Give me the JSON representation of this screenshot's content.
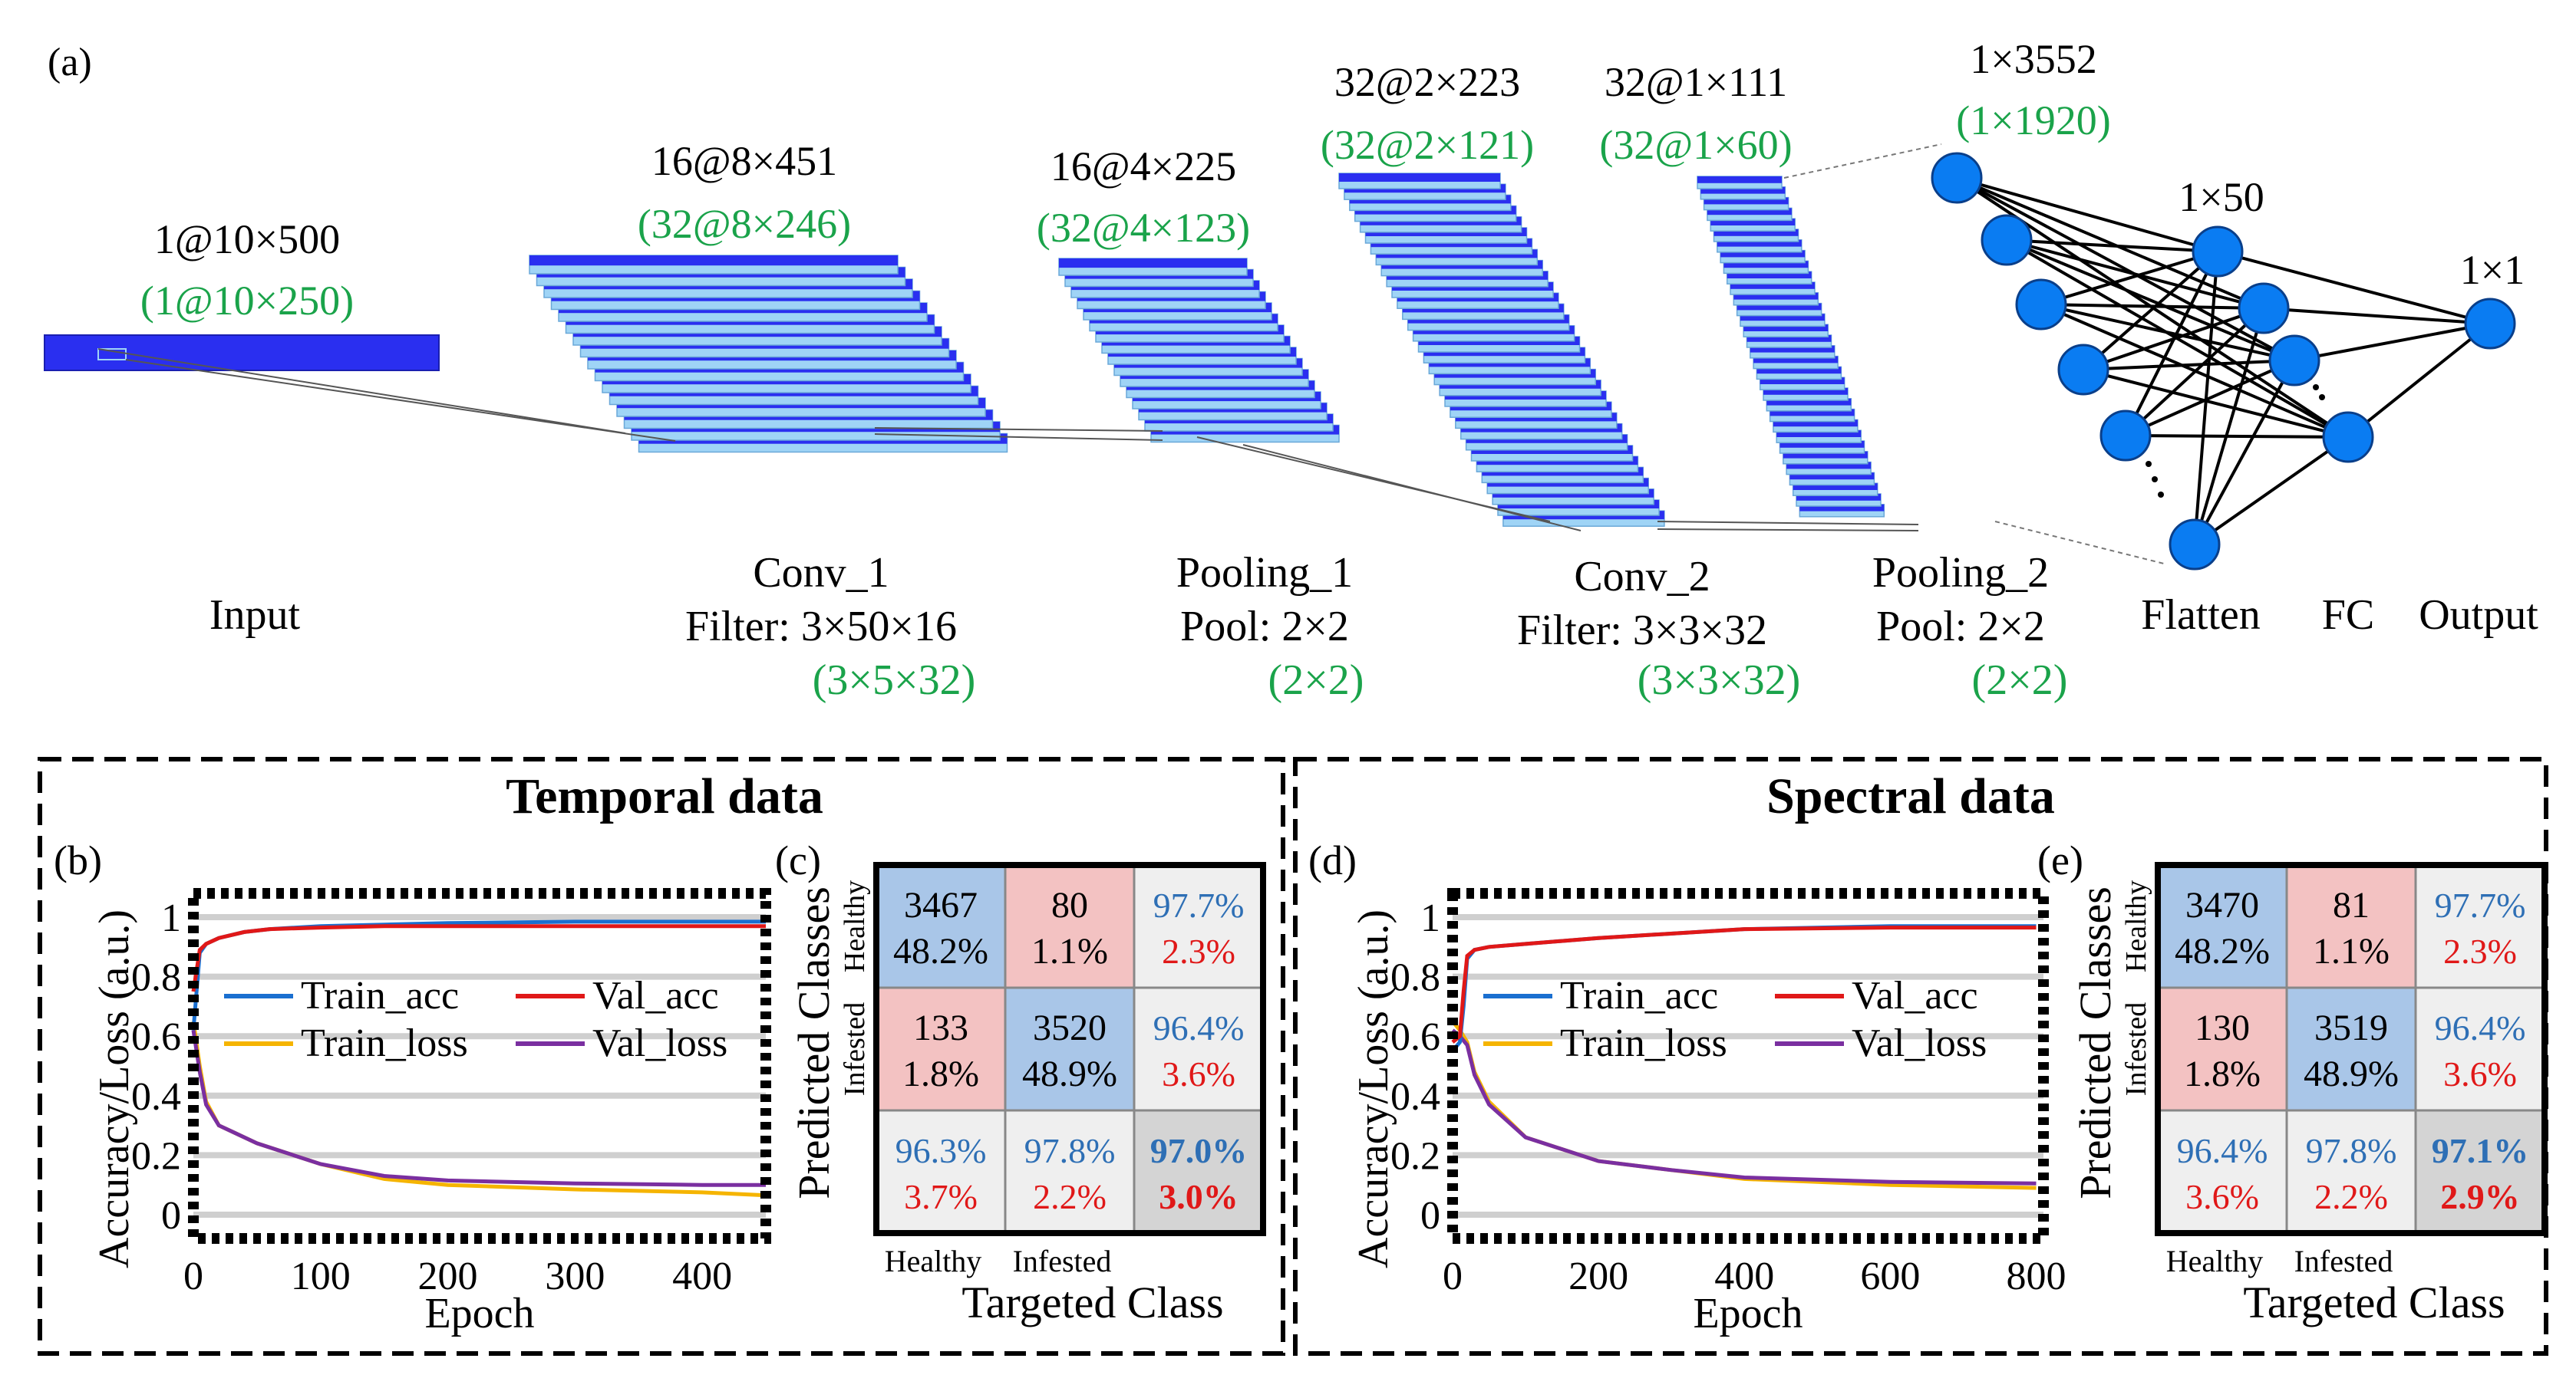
{
  "colors": {
    "layer_dark": "#2a2ff0",
    "layer_light": "#9fd4f6",
    "node_fill": "#0a7cf2",
    "green_text": "#1aa34a",
    "train_acc": "#1a6fd0",
    "val_acc": "#e01818",
    "train_loss": "#f5b400",
    "val_loss": "#7a2fa0",
    "cm_blue": "#a9c6e8",
    "cm_red": "#f3c2c2",
    "cm_gray": "#efefef",
    "cm_dark": "#d4d4d4",
    "pct_blue": "#2e6fb5",
    "pct_red": "#e01818"
  },
  "panel_a": {
    "label": "(a)",
    "layers": [
      {
        "name": "Input",
        "size": "1@10×500",
        "alt_size": "(1@10×250)",
        "filter": "",
        "alt_filter": ""
      },
      {
        "name": "Conv_1",
        "size": "16@8×451",
        "alt_size": "(32@8×246)",
        "filter": "Filter: 3×50×16",
        "alt_filter": "(3×5×32)"
      },
      {
        "name": "Pooling_1",
        "size": "16@4×225",
        "alt_size": "(32@4×123)",
        "filter": "Pool: 2×2",
        "alt_filter": "(2×2)"
      },
      {
        "name": "Conv_2",
        "size": "32@2×223",
        "alt_size": "(32@2×121)",
        "filter": "Filter: 3×3×32",
        "alt_filter": "(3×3×32)"
      },
      {
        "name": "Pooling_2",
        "size": "32@1×111",
        "alt_size": "(32@1×60)",
        "filter": "Pool: 2×2",
        "alt_filter": "(2×2)"
      }
    ],
    "flatten": {
      "name": "Flatten",
      "size": "1×3552",
      "alt_size": "(1×1920)"
    },
    "fc": {
      "name": "FC",
      "size": "1×50"
    },
    "output": {
      "name": "Output",
      "size": "1×1"
    }
  },
  "sections": {
    "temporal_title": "Temporal data",
    "spectral_title": "Spectral data"
  },
  "panel_b": {
    "label": "(b)",
    "chart_data": {
      "type": "line",
      "xlabel": "Epoch",
      "ylabel": "Accuracy/Loss (a.u.)",
      "xlim": [
        0,
        450
      ],
      "ylim": [
        -0.08,
        1.08
      ],
      "xticks": [
        0,
        100,
        200,
        300,
        400
      ],
      "yticks": [
        0,
        0.2,
        0.4,
        0.6,
        0.8,
        1
      ],
      "ytick_labels": [
        "0",
        "0.2",
        "0.4",
        "0.6",
        "0.8",
        "1"
      ],
      "grid": true,
      "legend": "upper-center",
      "series": [
        {
          "name": "Train_acc",
          "x": [
            0,
            5,
            10,
            20,
            40,
            60,
            100,
            150,
            200,
            300,
            400,
            450
          ],
          "y": [
            0.62,
            0.88,
            0.91,
            0.93,
            0.95,
            0.96,
            0.97,
            0.975,
            0.98,
            0.985,
            0.985,
            0.985
          ]
        },
        {
          "name": "Val_acc",
          "x": [
            0,
            5,
            10,
            20,
            40,
            60,
            100,
            150,
            200,
            300,
            400,
            450
          ],
          "y": [
            0.75,
            0.89,
            0.91,
            0.93,
            0.95,
            0.96,
            0.965,
            0.97,
            0.97,
            0.97,
            0.97,
            0.97
          ]
        },
        {
          "name": "Train_loss",
          "x": [
            0,
            5,
            10,
            20,
            30,
            50,
            100,
            150,
            200,
            300,
            400,
            450
          ],
          "y": [
            0.65,
            0.5,
            0.38,
            0.3,
            0.28,
            0.24,
            0.17,
            0.12,
            0.1,
            0.085,
            0.075,
            0.065
          ]
        },
        {
          "name": "Val_loss",
          "x": [
            0,
            5,
            10,
            20,
            30,
            50,
            100,
            150,
            200,
            300,
            400,
            450
          ],
          "y": [
            0.62,
            0.48,
            0.37,
            0.3,
            0.28,
            0.24,
            0.17,
            0.13,
            0.115,
            0.105,
            0.1,
            0.1
          ]
        }
      ]
    }
  },
  "panel_c": {
    "label": "(c)",
    "ylabel": "Predicted Classes",
    "xlabel": "Targeted Class",
    "row_labels": [
      "Healthy",
      "Infested"
    ],
    "col_labels": [
      "Healthy",
      "Infested"
    ],
    "cells": [
      [
        {
          "count": "3467",
          "pct": "48.2%",
          "kind": "blue"
        },
        {
          "count": "80",
          "pct": "1.1%",
          "kind": "red"
        },
        {
          "top": "97.7%",
          "bottom": "2.3%",
          "kind": "gray"
        }
      ],
      [
        {
          "count": "133",
          "pct": "1.8%",
          "kind": "red"
        },
        {
          "count": "3520",
          "pct": "48.9%",
          "kind": "blue"
        },
        {
          "top": "96.4%",
          "bottom": "3.6%",
          "kind": "gray"
        }
      ],
      [
        {
          "top": "96.3%",
          "bottom": "3.7%",
          "kind": "gray"
        },
        {
          "top": "97.8%",
          "bottom": "2.2%",
          "kind": "gray"
        },
        {
          "top": "97.0%",
          "bottom": "3.0%",
          "kind": "dark"
        }
      ]
    ]
  },
  "panel_d": {
    "label": "(d)",
    "chart_data": {
      "type": "line",
      "xlabel": "Epoch",
      "ylabel": "Accuracy/Loss (a.u.)",
      "xlim": [
        0,
        810
      ],
      "ylim": [
        -0.08,
        1.08
      ],
      "xticks": [
        0,
        200,
        400,
        600,
        800
      ],
      "yticks": [
        0,
        0.2,
        0.4,
        0.6,
        0.8,
        1
      ],
      "ytick_labels": [
        "0",
        "0.2",
        "0.4",
        "0.6",
        "0.8",
        "1"
      ],
      "grid": true,
      "legend": "upper-center",
      "series": [
        {
          "name": "Train_acc",
          "x": [
            0,
            10,
            15,
            20,
            30,
            50,
            100,
            200,
            400,
            600,
            800
          ],
          "y": [
            0.55,
            0.58,
            0.7,
            0.86,
            0.89,
            0.9,
            0.91,
            0.93,
            0.96,
            0.97,
            0.97
          ]
        },
        {
          "name": "Val_acc",
          "x": [
            0,
            10,
            15,
            20,
            30,
            50,
            100,
            200,
            400,
            600,
            800
          ],
          "y": [
            0.58,
            0.6,
            0.75,
            0.87,
            0.89,
            0.9,
            0.91,
            0.93,
            0.96,
            0.965,
            0.965
          ]
        },
        {
          "name": "Train_loss",
          "x": [
            0,
            10,
            20,
            30,
            50,
            100,
            200,
            300,
            400,
            600,
            800
          ],
          "y": [
            0.65,
            0.62,
            0.58,
            0.48,
            0.38,
            0.26,
            0.18,
            0.15,
            0.12,
            0.1,
            0.09
          ]
        },
        {
          "name": "Val_loss",
          "x": [
            0,
            10,
            20,
            30,
            50,
            100,
            200,
            300,
            400,
            600,
            800
          ],
          "y": [
            0.62,
            0.6,
            0.57,
            0.47,
            0.37,
            0.26,
            0.18,
            0.15,
            0.125,
            0.11,
            0.105
          ]
        }
      ]
    }
  },
  "panel_e": {
    "label": "(e)",
    "ylabel": "Predicted Classes",
    "xlabel": "Targeted Class",
    "row_labels": [
      "Healthy",
      "Infested"
    ],
    "col_labels": [
      "Healthy",
      "Infested"
    ],
    "cells": [
      [
        {
          "count": "3470",
          "pct": "48.2%",
          "kind": "blue"
        },
        {
          "count": "81",
          "pct": "1.1%",
          "kind": "red"
        },
        {
          "top": "97.7%",
          "bottom": "2.3%",
          "kind": "gray"
        }
      ],
      [
        {
          "count": "130",
          "pct": "1.8%",
          "kind": "red"
        },
        {
          "count": "3519",
          "pct": "48.9%",
          "kind": "blue"
        },
        {
          "top": "96.4%",
          "bottom": "3.6%",
          "kind": "gray"
        }
      ],
      [
        {
          "top": "96.4%",
          "bottom": "3.6%",
          "kind": "gray"
        },
        {
          "top": "97.8%",
          "bottom": "2.2%",
          "kind": "gray"
        },
        {
          "top": "97.1%",
          "bottom": "2.9%",
          "kind": "dark"
        }
      ]
    ]
  }
}
